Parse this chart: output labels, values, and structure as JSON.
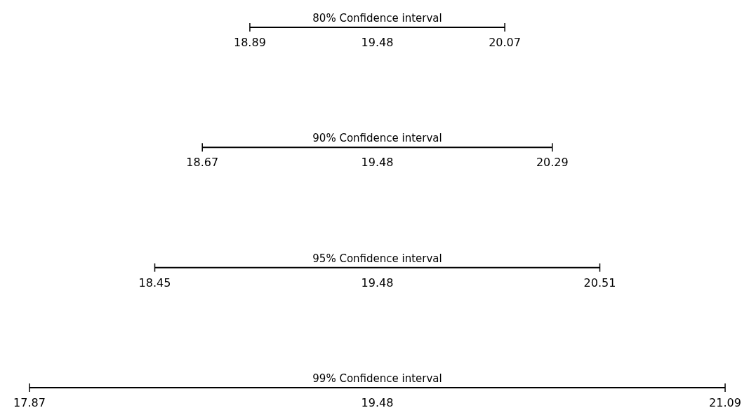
{
  "chart_data": {
    "type": "other",
    "categories": [
      "80% Confidence interval",
      "90% Confidence interval",
      "95% Confidence interval",
      "99% Confidence interval"
    ],
    "series": [
      {
        "color": "#000000",
        "values": [
          18.89,
          18.67,
          18.45,
          17.87
        ]
      },
      {
        "color": "#000000",
        "values": [
          19.48,
          19.48,
          19.48,
          19.48
        ]
      },
      {
        "color": "#000000",
        "values": [
          20.07,
          20.29,
          20.51,
          21.09
        ]
      }
    ],
    "data_labels": true
  }
}
